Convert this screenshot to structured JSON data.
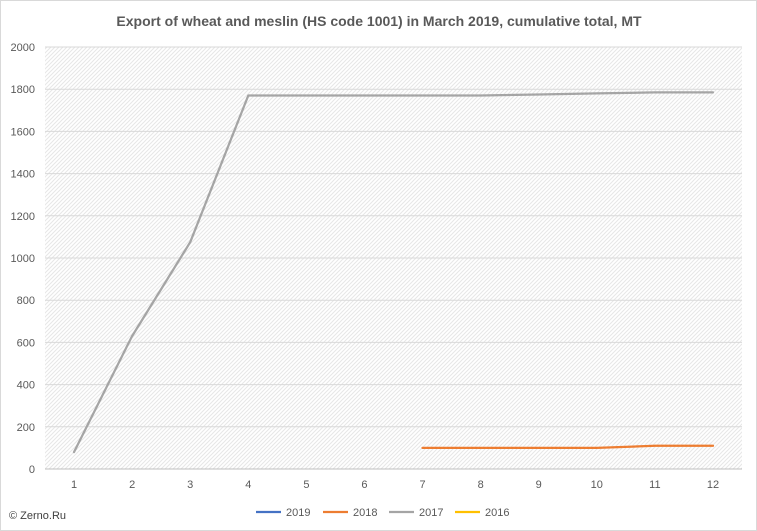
{
  "chart_data": {
    "type": "line",
    "title": "Export of wheat and meslin (HS code 1001) in March 2019, cumulative total, MT",
    "xlabel": "",
    "ylabel": "",
    "x": [
      1,
      2,
      3,
      4,
      5,
      6,
      7,
      8,
      9,
      10,
      11,
      12
    ],
    "ylim": [
      0,
      2000
    ],
    "yticks": [
      0,
      200,
      400,
      600,
      800,
      1000,
      1200,
      1400,
      1600,
      1800,
      2000
    ],
    "grid": true,
    "legend_position": "bottom",
    "series": [
      {
        "name": "2019",
        "color": "#4472c4",
        "values": [
          null,
          null,
          null,
          null,
          null,
          null,
          null,
          null,
          null,
          null,
          null,
          null
        ]
      },
      {
        "name": "2018",
        "color": "#ed7d31",
        "values": [
          null,
          null,
          null,
          null,
          null,
          null,
          100,
          100,
          100,
          100,
          110,
          110
        ]
      },
      {
        "name": "2017",
        "color": "#a5a5a5",
        "values": [
          80,
          630,
          1075,
          1770,
          1770,
          1770,
          1770,
          1770,
          1775,
          1780,
          1785,
          1785
        ]
      },
      {
        "name": "2016",
        "color": "#ffc000",
        "values": [
          null,
          null,
          null,
          null,
          null,
          null,
          null,
          null,
          null,
          null,
          null,
          null
        ]
      }
    ]
  },
  "credit": {
    "icon": "copyright-icon",
    "text": "© Zerno.Ru"
  }
}
